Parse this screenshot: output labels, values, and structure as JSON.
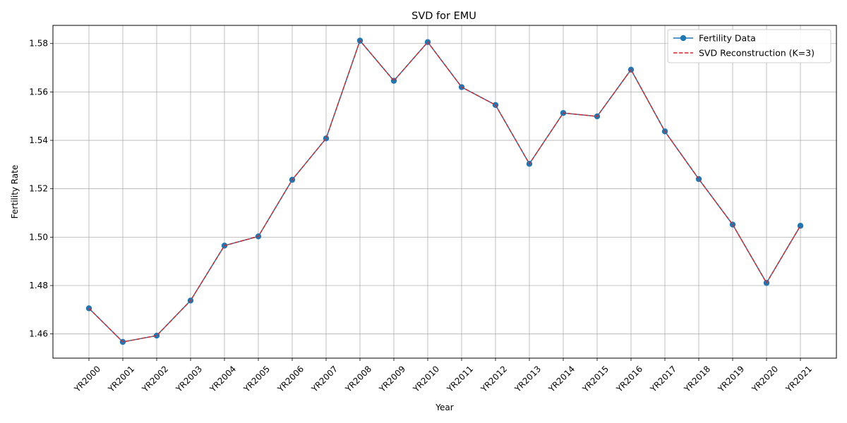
{
  "chart_data": {
    "type": "line",
    "title": "SVD for EMU",
    "xlabel": "Year",
    "ylabel": "Fertility Rate",
    "categories": [
      "YR2000",
      "YR2001",
      "YR2002",
      "YR2003",
      "YR2004",
      "YR2005",
      "YR2006",
      "YR2007",
      "YR2008",
      "YR2009",
      "YR2010",
      "YR2011",
      "YR2012",
      "YR2013",
      "YR2014",
      "YR2015",
      "YR2016",
      "YR2017",
      "YR2018",
      "YR2019",
      "YR2020",
      "YR2021"
    ],
    "ylim": [
      1.45,
      1.5875
    ],
    "yticks": [
      1.46,
      1.48,
      1.5,
      1.52,
      1.54,
      1.56,
      1.58
    ],
    "ytick_labels": [
      "1.46",
      "1.48",
      "1.50",
      "1.52",
      "1.54",
      "1.56",
      "1.58"
    ],
    "grid": true,
    "legend_position": "top-right",
    "series": [
      {
        "name": "Fertility Data",
        "color": "#1f77b4",
        "style": "solid-with-markers",
        "values": [
          1.4706,
          1.4567,
          1.4593,
          1.4738,
          1.4965,
          1.5003,
          1.5237,
          1.5408,
          1.5812,
          1.5646,
          1.5806,
          1.562,
          1.5546,
          1.5303,
          1.5513,
          1.5499,
          1.5692,
          1.5437,
          1.524,
          1.5052,
          1.4811,
          1.5047
        ]
      },
      {
        "name": "SVD Reconstruction (K=3)",
        "color": "#d62728",
        "style": "dashed",
        "values": [
          1.4706,
          1.4567,
          1.4593,
          1.4738,
          1.4965,
          1.5003,
          1.5237,
          1.5408,
          1.5812,
          1.5646,
          1.5806,
          1.562,
          1.5546,
          1.5303,
          1.5513,
          1.5499,
          1.5692,
          1.5437,
          1.524,
          1.5052,
          1.4811,
          1.5047
        ]
      }
    ]
  }
}
